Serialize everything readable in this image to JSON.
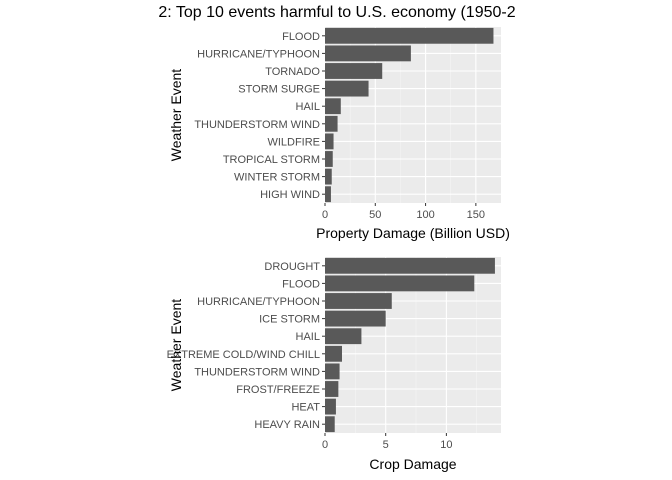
{
  "title": "2: Top 10 events harmful to U.S. economy (1950-2",
  "colors": {
    "panel_bg": "#ebebeb",
    "grid_major": "#ffffff",
    "grid_minor": "#f5f5f5",
    "bar": "#595959",
    "tick": "#333333"
  },
  "chart_data": [
    {
      "type": "bar",
      "orientation": "horizontal",
      "xlabel": "Property Damage (Billion USD)",
      "ylabel": "Weather Event",
      "xlim": [
        0,
        175
      ],
      "xticks": [
        0,
        50,
        100,
        150
      ],
      "tick_labels": [
        "0",
        "50",
        "100",
        "150"
      ],
      "categories": [
        "FLOOD",
        "HURRICANE/TYPHOON",
        "TORNADO",
        "STORM SURGE",
        "HAIL",
        "THUNDERSTORM WIND",
        "WILDFIRE",
        "TROPICAL STORM",
        "WINTER STORM",
        "HIGH WIND"
      ],
      "values": [
        167.5,
        85.4,
        56.9,
        43.3,
        15.7,
        12.5,
        8.5,
        7.7,
        6.7,
        5.9
      ],
      "grid": true,
      "legend": "none"
    },
    {
      "type": "bar",
      "orientation": "horizontal",
      "xlabel": "Crop Damage",
      "ylabel": "Weather Event",
      "xlim": [
        0,
        14.5
      ],
      "xticks": [
        0,
        5,
        10
      ],
      "tick_labels": [
        "0",
        "5",
        "10"
      ],
      "categories": [
        "DROUGHT",
        "FLOOD",
        "HURRICANE/TYPHOON",
        "ICE STORM",
        "HAIL",
        "EXTREME COLD/WIND CHILL",
        "THUNDERSTORM WIND",
        "FROST/FREEZE",
        "HEAT",
        "HEAVY RAIN"
      ],
      "values": [
        14.0,
        12.3,
        5.5,
        5.0,
        3.0,
        1.4,
        1.2,
        1.1,
        0.9,
        0.8
      ],
      "grid": true,
      "legend": "none"
    }
  ]
}
